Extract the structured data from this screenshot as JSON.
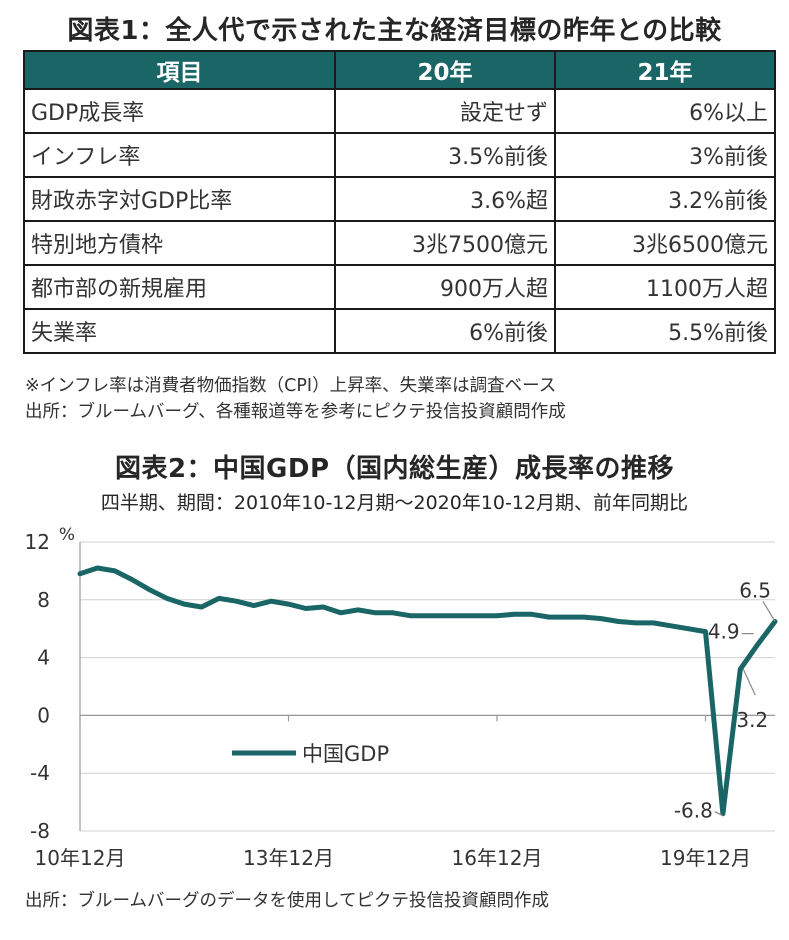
{
  "table1": {
    "title": "図表1：全人代で示された主な経済目標の昨年との比較",
    "headers": [
      "項目",
      "20年",
      "21年"
    ],
    "rows": [
      {
        "item": "GDP成長率",
        "y20": "設定せず",
        "y21": "6%以上"
      },
      {
        "item": "インフレ率",
        "y20": "3.5%前後",
        "y21": "3%前後"
      },
      {
        "item": "財政赤字対GDP比率",
        "y20": "3.6%超",
        "y21": "3.2%前後"
      },
      {
        "item": "特別地方債枠",
        "y20": "3兆7500億元",
        "y21": "3兆6500億元"
      },
      {
        "item": "都市部の新規雇用",
        "y20": "900万人超",
        "y21": "1100万人超"
      },
      {
        "item": "失業率",
        "y20": "6%前後",
        "y21": "5.5%前後"
      }
    ],
    "note": "※インフレ率は消費者物価指数（CPI）上昇率、失業率は調査ベース",
    "source": "出所：ブルームバーグ、各種報道等を参考にピクテ投信投資顧問作成"
  },
  "chart2": {
    "title": "図表2：中国GDP（国内総生産）成長率の推移",
    "subtitle": "四半期、期間：2010年10-12月期～2020年10-12月期、前年同期比",
    "source": "出所：ブルームバーグのデータを使用してピクテ投信投資顧問作成",
    "unit": "%",
    "color": "#1a6565"
  },
  "chart_data": {
    "type": "line",
    "ylabel": "%",
    "ylim": [
      -8,
      12
    ],
    "yticks": [
      12,
      8,
      4,
      0,
      -4,
      -8
    ],
    "x_tick_labels": [
      "10年12月",
      "13年12月",
      "16年12月",
      "19年12月"
    ],
    "x_tick_indices": [
      0,
      12,
      24,
      36
    ],
    "legend": "中国GDP",
    "legend_position": "center-left",
    "x": [
      "10年12月",
      "11年3月",
      "11年6月",
      "11年9月",
      "11年12月",
      "12年3月",
      "12年6月",
      "12年9月",
      "12年12月",
      "13年3月",
      "13年6月",
      "13年9月",
      "13年12月",
      "14年3月",
      "14年6月",
      "14年9月",
      "14年12月",
      "15年3月",
      "15年6月",
      "15年9月",
      "15年12月",
      "16年3月",
      "16年6月",
      "16年9月",
      "16年12月",
      "17年3月",
      "17年6月",
      "17年9月",
      "17年12月",
      "18年3月",
      "18年6月",
      "18年9月",
      "18年12月",
      "19年3月",
      "19年6月",
      "19年9月",
      "19年12月",
      "20年3月",
      "20年6月",
      "20年9月",
      "20年12月"
    ],
    "series": [
      {
        "name": "中国GDP",
        "values": [
          9.8,
          10.2,
          10.0,
          9.4,
          8.7,
          8.1,
          7.7,
          7.5,
          8.1,
          7.9,
          7.6,
          7.9,
          7.7,
          7.4,
          7.5,
          7.1,
          7.3,
          7.1,
          7.1,
          6.9,
          6.9,
          6.9,
          6.9,
          6.9,
          6.9,
          7.0,
          7.0,
          6.8,
          6.8,
          6.8,
          6.7,
          6.5,
          6.4,
          6.4,
          6.2,
          6.0,
          5.8,
          -6.8,
          3.2,
          4.9,
          6.5
        ]
      }
    ],
    "annotations": [
      {
        "label": "4.9",
        "index": 39
      },
      {
        "label": "6.5",
        "index": 40
      },
      {
        "label": "3.2",
        "index": 38
      },
      {
        "label": "-6.8",
        "index": 37
      }
    ]
  }
}
